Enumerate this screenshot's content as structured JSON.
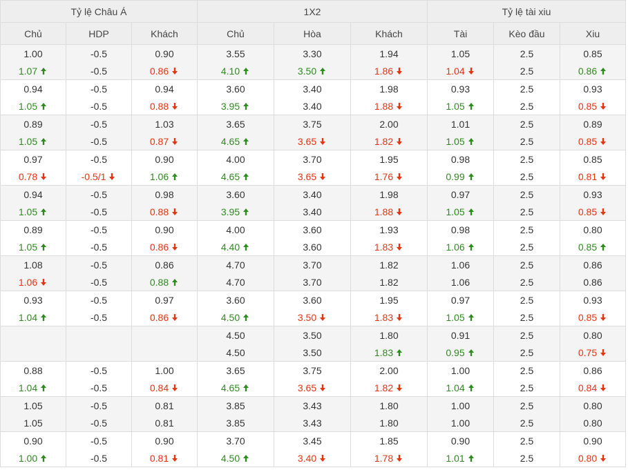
{
  "headers": {
    "groups": [
      "Tỷ lệ Châu Á",
      "1X2",
      "Tỷ lệ tài xiu"
    ],
    "columns": [
      "Chủ",
      "HDP",
      "Khách",
      "Chủ",
      "Hòa",
      "Khách",
      "Tài",
      "Kèo đầu",
      "Xiu"
    ]
  },
  "colors": {
    "up": "#2e8b1e",
    "down": "#e53412",
    "neutral": "#333333",
    "header_bg": "#eeeeee",
    "stripe_bg": "#f4f4f4"
  },
  "icons": {
    "up": "arrow-up-icon",
    "down": "arrow-down-icon"
  },
  "rows": [
    {
      "cells": [
        {
          "open": "1.00",
          "live": "1.07",
          "trend": "up"
        },
        {
          "open": "-0.5",
          "live": "-0.5",
          "trend": "same"
        },
        {
          "open": "0.90",
          "live": "0.86",
          "trend": "down"
        },
        {
          "open": "3.55",
          "live": "4.10",
          "trend": "up"
        },
        {
          "open": "3.30",
          "live": "3.50",
          "trend": "up"
        },
        {
          "open": "1.94",
          "live": "1.86",
          "trend": "down"
        },
        {
          "open": "1.05",
          "live": "1.04",
          "trend": "down"
        },
        {
          "open": "2.5",
          "live": "2.5",
          "trend": "same"
        },
        {
          "open": "0.85",
          "live": "0.86",
          "trend": "up"
        }
      ]
    },
    {
      "cells": [
        {
          "open": "0.94",
          "live": "1.05",
          "trend": "up"
        },
        {
          "open": "-0.5",
          "live": "-0.5",
          "trend": "same"
        },
        {
          "open": "0.94",
          "live": "0.88",
          "trend": "down"
        },
        {
          "open": "3.60",
          "live": "3.95",
          "trend": "up"
        },
        {
          "open": "3.40",
          "live": "3.40",
          "trend": "same"
        },
        {
          "open": "1.98",
          "live": "1.88",
          "trend": "down"
        },
        {
          "open": "0.93",
          "live": "1.05",
          "trend": "up"
        },
        {
          "open": "2.5",
          "live": "2.5",
          "trend": "same"
        },
        {
          "open": "0.93",
          "live": "0.85",
          "trend": "down"
        }
      ]
    },
    {
      "cells": [
        {
          "open": "0.89",
          "live": "1.05",
          "trend": "up"
        },
        {
          "open": "-0.5",
          "live": "-0.5",
          "trend": "same"
        },
        {
          "open": "1.03",
          "live": "0.87",
          "trend": "down"
        },
        {
          "open": "3.65",
          "live": "4.65",
          "trend": "up"
        },
        {
          "open": "3.75",
          "live": "3.65",
          "trend": "down"
        },
        {
          "open": "2.00",
          "live": "1.82",
          "trend": "down"
        },
        {
          "open": "1.01",
          "live": "1.05",
          "trend": "up"
        },
        {
          "open": "2.5",
          "live": "2.5",
          "trend": "same"
        },
        {
          "open": "0.89",
          "live": "0.85",
          "trend": "down"
        }
      ]
    },
    {
      "cells": [
        {
          "open": "0.97",
          "live": "0.78",
          "trend": "down"
        },
        {
          "open": "-0.5",
          "live": "-0.5/1",
          "trend": "down"
        },
        {
          "open": "0.90",
          "live": "1.06",
          "trend": "up"
        },
        {
          "open": "4.00",
          "live": "4.65",
          "trend": "up"
        },
        {
          "open": "3.70",
          "live": "3.65",
          "trend": "down"
        },
        {
          "open": "1.95",
          "live": "1.76",
          "trend": "down"
        },
        {
          "open": "0.98",
          "live": "0.99",
          "trend": "up"
        },
        {
          "open": "2.5",
          "live": "2.5",
          "trend": "same"
        },
        {
          "open": "0.85",
          "live": "0.81",
          "trend": "down"
        }
      ]
    },
    {
      "cells": [
        {
          "open": "0.94",
          "live": "1.05",
          "trend": "up"
        },
        {
          "open": "-0.5",
          "live": "-0.5",
          "trend": "same"
        },
        {
          "open": "0.98",
          "live": "0.88",
          "trend": "down"
        },
        {
          "open": "3.60",
          "live": "3.95",
          "trend": "up"
        },
        {
          "open": "3.40",
          "live": "3.40",
          "trend": "same"
        },
        {
          "open": "1.98",
          "live": "1.88",
          "trend": "down"
        },
        {
          "open": "0.97",
          "live": "1.05",
          "trend": "up"
        },
        {
          "open": "2.5",
          "live": "2.5",
          "trend": "same"
        },
        {
          "open": "0.93",
          "live": "0.85",
          "trend": "down"
        }
      ]
    },
    {
      "cells": [
        {
          "open": "0.89",
          "live": "1.05",
          "trend": "up"
        },
        {
          "open": "-0.5",
          "live": "-0.5",
          "trend": "same"
        },
        {
          "open": "0.90",
          "live": "0.86",
          "trend": "down"
        },
        {
          "open": "4.00",
          "live": "4.40",
          "trend": "up"
        },
        {
          "open": "3.60",
          "live": "3.60",
          "trend": "same"
        },
        {
          "open": "1.93",
          "live": "1.83",
          "trend": "down"
        },
        {
          "open": "0.98",
          "live": "1.06",
          "trend": "up"
        },
        {
          "open": "2.5",
          "live": "2.5",
          "trend": "same"
        },
        {
          "open": "0.80",
          "live": "0.85",
          "trend": "up"
        }
      ]
    },
    {
      "cells": [
        {
          "open": "1.08",
          "live": "1.06",
          "trend": "down"
        },
        {
          "open": "-0.5",
          "live": "-0.5",
          "trend": "same"
        },
        {
          "open": "0.86",
          "live": "0.88",
          "trend": "up"
        },
        {
          "open": "4.70",
          "live": "4.70",
          "trend": "same"
        },
        {
          "open": "3.70",
          "live": "3.70",
          "trend": "same"
        },
        {
          "open": "1.82",
          "live": "1.82",
          "trend": "same"
        },
        {
          "open": "1.06",
          "live": "1.06",
          "trend": "same"
        },
        {
          "open": "2.5",
          "live": "2.5",
          "trend": "same"
        },
        {
          "open": "0.86",
          "live": "0.86",
          "trend": "same"
        }
      ]
    },
    {
      "cells": [
        {
          "open": "0.93",
          "live": "1.04",
          "trend": "up"
        },
        {
          "open": "-0.5",
          "live": "-0.5",
          "trend": "same"
        },
        {
          "open": "0.97",
          "live": "0.86",
          "trend": "down"
        },
        {
          "open": "3.60",
          "live": "4.50",
          "trend": "up"
        },
        {
          "open": "3.60",
          "live": "3.50",
          "trend": "down"
        },
        {
          "open": "1.95",
          "live": "1.83",
          "trend": "down"
        },
        {
          "open": "0.97",
          "live": "1.05",
          "trend": "up"
        },
        {
          "open": "2.5",
          "live": "2.5",
          "trend": "same"
        },
        {
          "open": "0.93",
          "live": "0.85",
          "trend": "down"
        }
      ]
    },
    {
      "cells": [
        {
          "open": "",
          "live": "",
          "trend": "same"
        },
        {
          "open": "",
          "live": "",
          "trend": "same"
        },
        {
          "open": "",
          "live": "",
          "trend": "same"
        },
        {
          "open": "4.50",
          "live": "4.50",
          "trend": "same"
        },
        {
          "open": "3.50",
          "live": "3.50",
          "trend": "same"
        },
        {
          "open": "1.80",
          "live": "1.83",
          "trend": "up"
        },
        {
          "open": "0.91",
          "live": "0.95",
          "trend": "up"
        },
        {
          "open": "2.5",
          "live": "2.5",
          "trend": "same"
        },
        {
          "open": "0.80",
          "live": "0.75",
          "trend": "down"
        }
      ]
    },
    {
      "cells": [
        {
          "open": "0.88",
          "live": "1.04",
          "trend": "up"
        },
        {
          "open": "-0.5",
          "live": "-0.5",
          "trend": "same"
        },
        {
          "open": "1.00",
          "live": "0.84",
          "trend": "down"
        },
        {
          "open": "3.65",
          "live": "4.65",
          "trend": "up"
        },
        {
          "open": "3.75",
          "live": "3.65",
          "trend": "down"
        },
        {
          "open": "2.00",
          "live": "1.82",
          "trend": "down"
        },
        {
          "open": "1.00",
          "live": "1.04",
          "trend": "up"
        },
        {
          "open": "2.5",
          "live": "2.5",
          "trend": "same"
        },
        {
          "open": "0.86",
          "live": "0.84",
          "trend": "down"
        }
      ]
    },
    {
      "cells": [
        {
          "open": "1.05",
          "live": "1.05",
          "trend": "same"
        },
        {
          "open": "-0.5",
          "live": "-0.5",
          "trend": "same"
        },
        {
          "open": "0.81",
          "live": "0.81",
          "trend": "same"
        },
        {
          "open": "3.85",
          "live": "3.85",
          "trend": "same"
        },
        {
          "open": "3.43",
          "live": "3.43",
          "trend": "same"
        },
        {
          "open": "1.80",
          "live": "1.80",
          "trend": "same"
        },
        {
          "open": "1.00",
          "live": "1.00",
          "trend": "same"
        },
        {
          "open": "2.5",
          "live": "2.5",
          "trend": "same"
        },
        {
          "open": "0.80",
          "live": "0.80",
          "trend": "same"
        }
      ]
    },
    {
      "cells": [
        {
          "open": "0.90",
          "live": "1.00",
          "trend": "up"
        },
        {
          "open": "-0.5",
          "live": "-0.5",
          "trend": "same"
        },
        {
          "open": "0.90",
          "live": "0.81",
          "trend": "down"
        },
        {
          "open": "3.70",
          "live": "4.50",
          "trend": "up"
        },
        {
          "open": "3.45",
          "live": "3.40",
          "trend": "down"
        },
        {
          "open": "1.85",
          "live": "1.78",
          "trend": "down"
        },
        {
          "open": "0.90",
          "live": "1.01",
          "trend": "up"
        },
        {
          "open": "2.5",
          "live": "2.5",
          "trend": "same"
        },
        {
          "open": "0.90",
          "live": "0.80",
          "trend": "down"
        }
      ]
    }
  ]
}
